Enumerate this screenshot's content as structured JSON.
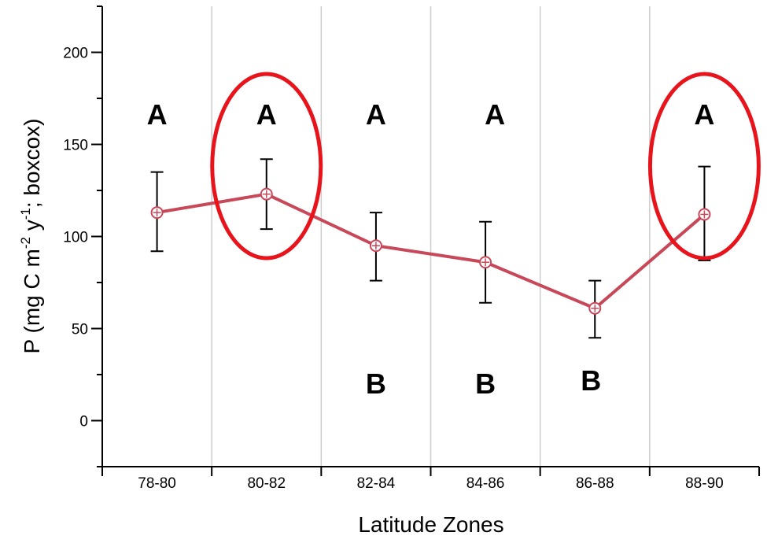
{
  "chart_data": {
    "type": "line",
    "xlabel": "Latitude Zones",
    "ylabel": {
      "base": "P (mg C m",
      "sup1": "-2",
      "mid": " y",
      "sup2": "-1",
      "end": "; boxcox)"
    },
    "categories": [
      "78-80",
      "80-82",
      "82-84",
      "84-86",
      "86-88",
      "88-90"
    ],
    "series": [
      {
        "values": [
          113,
          123,
          95,
          86,
          61,
          112
        ],
        "error_low": [
          92,
          104,
          76,
          64,
          45,
          87
        ],
        "error_high": [
          135,
          142,
          113,
          108,
          76,
          138
        ],
        "color": "#c8485a"
      }
    ],
    "ylim": [
      -25,
      225
    ],
    "yticks": [
      0,
      50,
      100,
      150,
      200
    ],
    "grid": "vertical",
    "group_letters_top": [
      "A",
      "A",
      "A",
      "A",
      "",
      "A"
    ],
    "group_letters_bottom": [
      "",
      "",
      "B",
      "B",
      "B",
      ""
    ],
    "highlighted_categories": [
      "80-82",
      "88-90"
    ],
    "highlight_color": "#e8141c",
    "axis_color": "#000000",
    "grid_color": "#cccccc"
  }
}
